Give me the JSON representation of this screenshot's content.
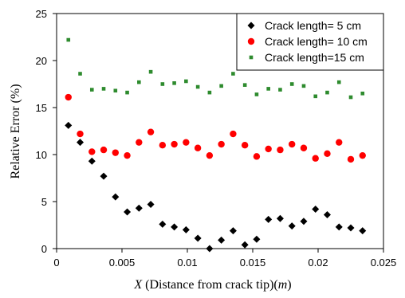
{
  "chart_data": {
    "type": "scatter",
    "xlabel_parts": [
      "X",
      " (Distance from crack tip)(",
      "m",
      ")"
    ],
    "ylabel": "Relative Error (%)",
    "xlim": [
      0,
      0.025
    ],
    "ylim": [
      0,
      25
    ],
    "xticks": [
      0,
      0.005,
      0.01,
      0.015,
      0.02,
      0.025
    ],
    "xtick_labels": [
      "0",
      "0.005",
      "0.01",
      "0.015",
      "0.02",
      "0.025"
    ],
    "yticks": [
      0,
      5,
      10,
      15,
      20,
      25
    ],
    "ytick_labels": [
      "0",
      "5",
      "10",
      "15",
      "20",
      "25"
    ],
    "legend_position": "top-right",
    "series": [
      {
        "name": "Crack length= 5 cm",
        "color": "#000000",
        "marker": "diamond",
        "x": [
          0.0009,
          0.0018,
          0.0027,
          0.0036,
          0.0045,
          0.0054,
          0.0063,
          0.0072,
          0.0081,
          0.009,
          0.0099,
          0.0108,
          0.0117,
          0.0126,
          0.0135,
          0.0144,
          0.0153,
          0.0162,
          0.0171,
          0.018,
          0.0189,
          0.0198,
          0.0207,
          0.0216,
          0.0225,
          0.0234
        ],
        "y": [
          13.1,
          11.3,
          9.3,
          7.7,
          5.5,
          3.9,
          4.3,
          4.7,
          2.6,
          2.3,
          2.0,
          1.1,
          0.0,
          0.9,
          1.9,
          0.4,
          1.0,
          3.1,
          3.2,
          2.4,
          2.9,
          4.2,
          3.6,
          2.3,
          2.2,
          1.9
        ]
      },
      {
        "name": "Crack length= 10 cm",
        "color": "#ff0000",
        "marker": "circle",
        "x": [
          0.0009,
          0.0018,
          0.0027,
          0.0036,
          0.0045,
          0.0054,
          0.0063,
          0.0072,
          0.0081,
          0.009,
          0.0099,
          0.0108,
          0.0117,
          0.0126,
          0.0135,
          0.0144,
          0.0153,
          0.0162,
          0.0171,
          0.018,
          0.0189,
          0.0198,
          0.0207,
          0.0216,
          0.0225,
          0.0234
        ],
        "y": [
          16.1,
          12.2,
          10.3,
          10.5,
          10.2,
          9.9,
          11.3,
          12.4,
          11.0,
          11.1,
          11.3,
          10.7,
          9.9,
          11.1,
          12.2,
          11.0,
          9.8,
          10.6,
          10.5,
          11.1,
          10.7,
          9.6,
          10.1,
          11.3,
          9.5,
          9.9
        ]
      },
      {
        "name": "Crack length=15 cm",
        "color": "#2e8b2e",
        "marker": "square",
        "x": [
          0.0009,
          0.0018,
          0.0027,
          0.0036,
          0.0045,
          0.0054,
          0.0063,
          0.0072,
          0.0081,
          0.009,
          0.0099,
          0.0108,
          0.0117,
          0.0126,
          0.0135,
          0.0144,
          0.0153,
          0.0162,
          0.0171,
          0.018,
          0.0189,
          0.0198,
          0.0207,
          0.0216,
          0.0225,
          0.0234
        ],
        "y": [
          22.2,
          18.6,
          16.9,
          17.0,
          16.8,
          16.6,
          17.7,
          18.8,
          17.5,
          17.6,
          17.8,
          17.2,
          16.6,
          17.3,
          18.6,
          17.4,
          16.4,
          17.0,
          16.9,
          17.5,
          17.3,
          16.2,
          16.6,
          17.7,
          16.1,
          16.5
        ]
      }
    ]
  }
}
